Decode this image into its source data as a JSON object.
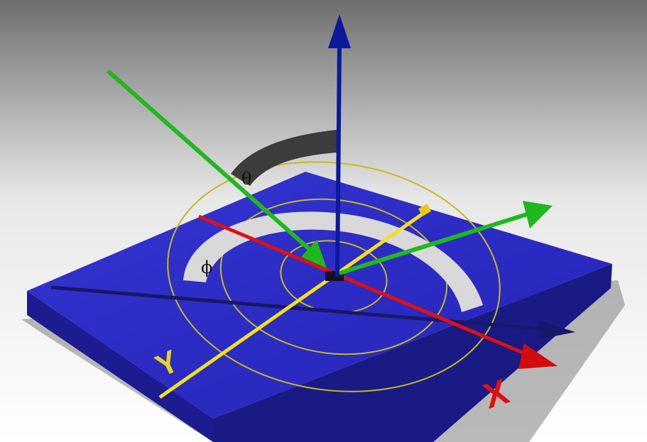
{
  "figure": {
    "labels": {
      "theta": "θ",
      "phi": "ϕ"
    },
    "axis_labels": {
      "x": "X",
      "y": "Y"
    },
    "colors": {
      "plate_top": "#2e2ec8",
      "plate_side": "#1a1a8a",
      "z_axis": "#0a1a9a",
      "x_axis": "#e01010",
      "y_axis": "#f0e020",
      "incident_ray": "#1fb81f",
      "reflected_ray": "#1fb81f",
      "theta_arc": "#3a3a3a",
      "phi_arc": "#d9d9d9",
      "rings": "#c8b820"
    },
    "icons": [
      "z-axis-arrow",
      "x-axis-arrow",
      "y-axis-arrow",
      "incident-ray-arrow",
      "reflected-ray-arrow",
      "theta-angle-arc",
      "phi-angle-arc"
    ]
  }
}
